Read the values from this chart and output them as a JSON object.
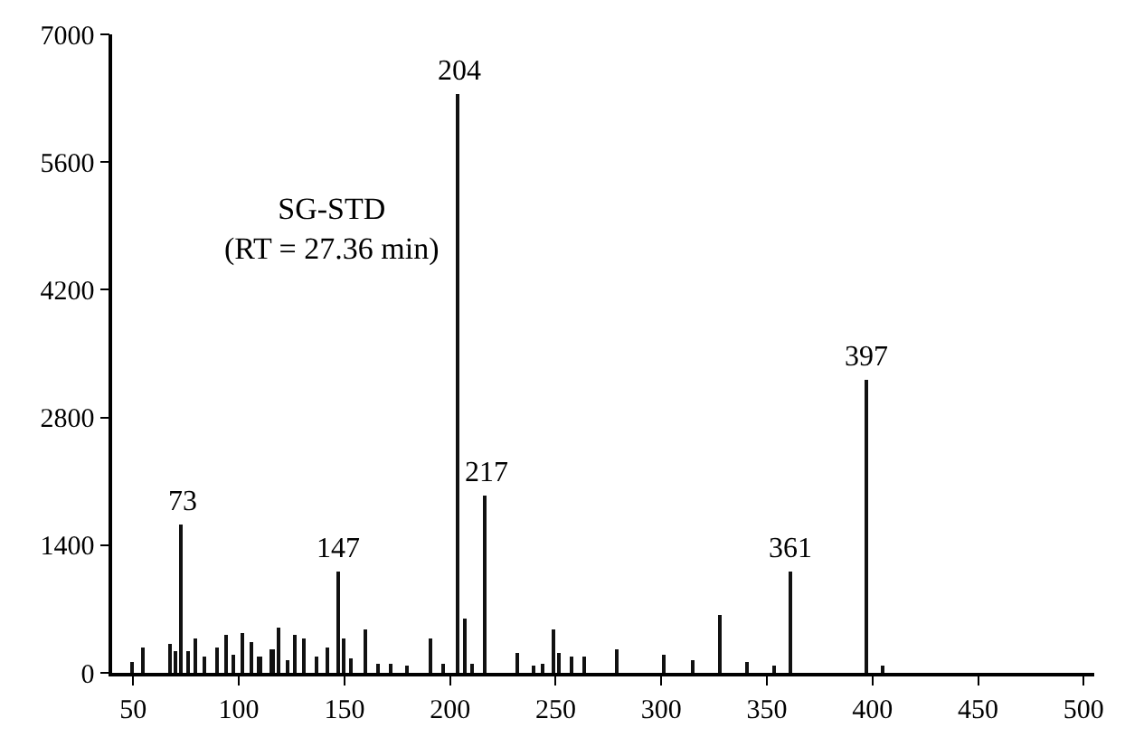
{
  "chart_data": {
    "type": "bar",
    "x": [
      50,
      55,
      68,
      70,
      73,
      76,
      80,
      84,
      90,
      94,
      98,
      102,
      106,
      110,
      116,
      119,
      123,
      127,
      131,
      137,
      142,
      147,
      150,
      153,
      160,
      166,
      172,
      180,
      191,
      197,
      204,
      207,
      211,
      217,
      232,
      240,
      244,
      249,
      252,
      258,
      264,
      279,
      301,
      315,
      328,
      341,
      354,
      361,
      397,
      405
    ],
    "series": [
      {
        "color": "#111111",
        "values": [
          120,
          270,
          310,
          230,
          1620,
          230,
          380,
          170,
          280,
          410,
          190,
          430,
          330,
          170,
          250,
          500,
          130,
          410,
          370,
          170,
          270,
          1120,
          370,
          150,
          480,
          100,
          100,
          80,
          370,
          100,
          6340,
          600,
          100,
          1940,
          210,
          80,
          100,
          470,
          210,
          180,
          180,
          250,
          200,
          130,
          630,
          110,
          80,
          1120,
          3220,
          80
        ]
      }
    ],
    "xlim": [
      40,
      505
    ],
    "xticks": [
      50,
      100,
      150,
      200,
      250,
      300,
      350,
      400,
      450,
      500
    ],
    "ylim": [
      0,
      7000
    ],
    "yticks": [
      0,
      1400,
      2800,
      4200,
      5600,
      7000
    ],
    "annotations": [
      "SG-STD\n(RT = 27.36 min)",
      {
        "text": "73",
        "x": 73,
        "y": 1620
      },
      {
        "text": "147",
        "x": 147,
        "y": 1120
      },
      {
        "text": "204",
        "x": 204,
        "y": 6340
      },
      {
        "text": "217",
        "x": 217,
        "y": 1940
      },
      {
        "text": "361",
        "x": 361,
        "y": 1120
      },
      {
        "text": "397",
        "x": 397,
        "y": 3220
      }
    ]
  }
}
